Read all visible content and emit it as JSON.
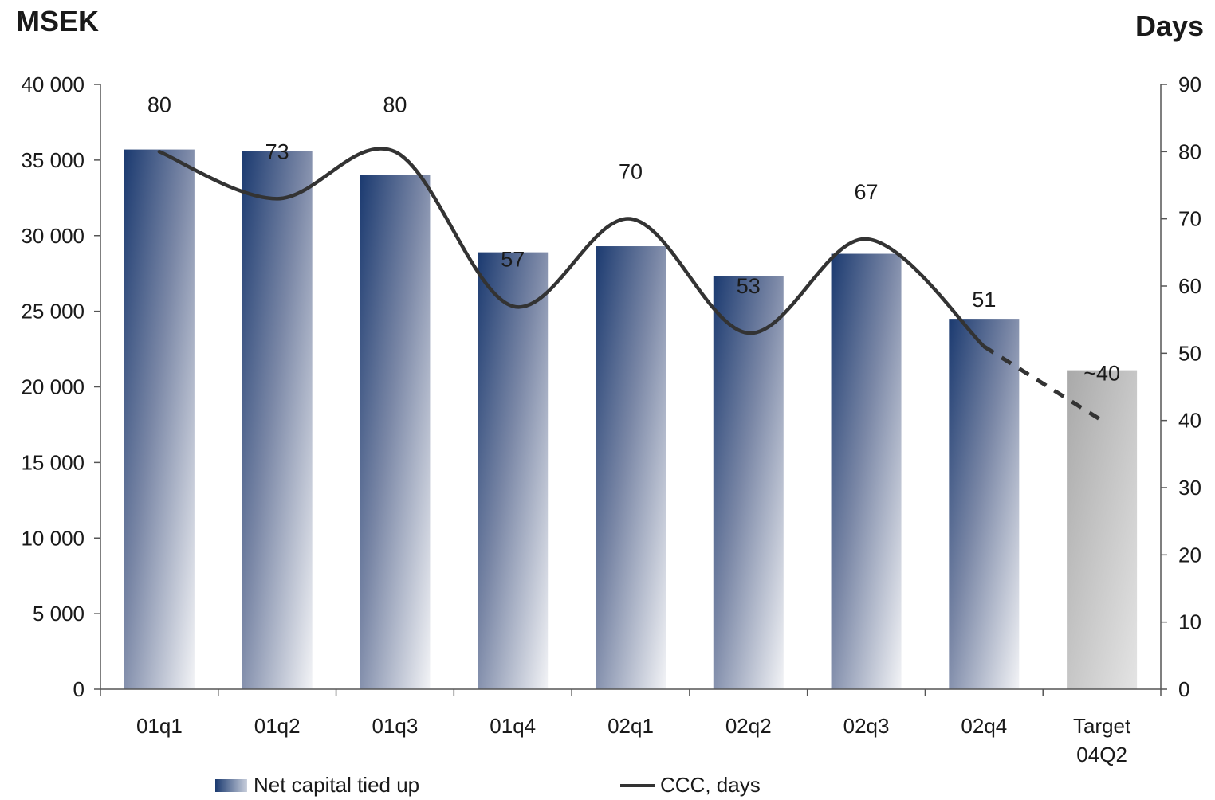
{
  "labels": {
    "left_unit": "MSEK",
    "right_unit": "Days"
  },
  "chart_data": {
    "type": "bar",
    "categories": [
      "01q1",
      "01q2",
      "01q3",
      "01q4",
      "02q1",
      "02q2",
      "02q3",
      "02q4",
      "Target\n04Q2"
    ],
    "series": [
      {
        "name": "Net capital tied up",
        "type": "bar",
        "axis": "left",
        "values": [
          35700,
          35600,
          34000,
          28900,
          29300,
          27300,
          28800,
          24500,
          21100
        ]
      },
      {
        "name": "CCC, days",
        "type": "line",
        "axis": "right",
        "values": [
          80,
          73,
          80,
          57,
          70,
          53,
          67,
          51,
          40
        ],
        "data_labels": [
          "80",
          "73",
          "80",
          "57",
          "70",
          "53",
          "67",
          "51",
          "~40"
        ],
        "dashed_last_segment": true
      }
    ],
    "ylim_left": [
      0,
      40000
    ],
    "yticks_left": [
      "0",
      "5 000",
      "10 000",
      "15 000",
      "20 000",
      "25 000",
      "30 000",
      "35 000",
      "40 000"
    ],
    "ylim_right": [
      0,
      90
    ],
    "yticks_right": [
      "0",
      "10",
      "20",
      "30",
      "40",
      "50",
      "60",
      "70",
      "80",
      "90"
    ],
    "legend_position": "bottom",
    "grid": false,
    "colors": {
      "bar_dark": "#1b3a70",
      "bar_light": "#f2f3f6",
      "target_bar": "#b8b8b8",
      "line": "#333333"
    }
  }
}
